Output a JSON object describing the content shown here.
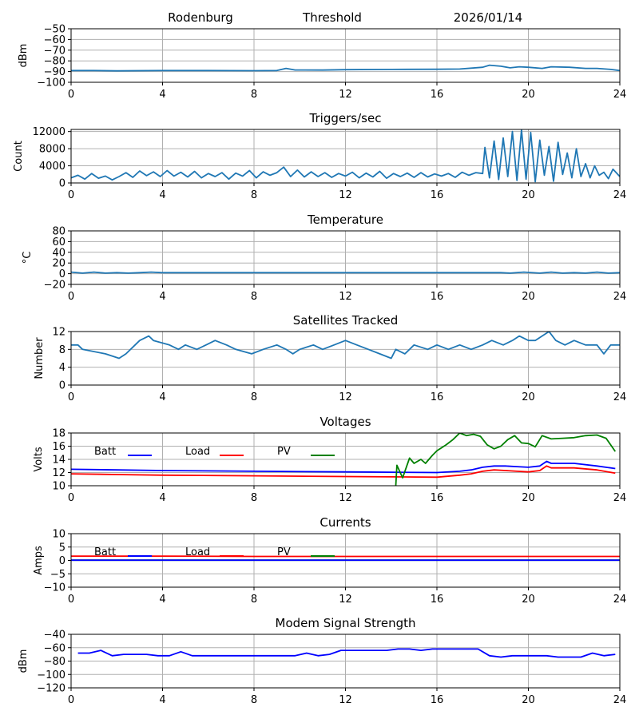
{
  "header": {
    "site": "Rodenburg",
    "mode": "Threshold",
    "date": "2026/01/14"
  },
  "colors": {
    "series": "#1f77b4",
    "batt": "#0000ff",
    "load": "#ff0000",
    "pv": "#008000",
    "grid": "#b0b0b0"
  },
  "chart_data": [
    {
      "id": "signal",
      "type": "line",
      "title": "",
      "ylabel": "dBm",
      "xlim": [
        0,
        24
      ],
      "ylim": [
        -100,
        -50
      ],
      "xticks": [
        0,
        4,
        8,
        12,
        16,
        20,
        24
      ],
      "yticks": [
        -100,
        -90,
        -80,
        -70,
        -60,
        -50
      ],
      "series": [
        {
          "name": "signal",
          "color": "#1f77b4",
          "x": [
            0,
            1,
            2,
            4,
            6,
            8,
            9,
            9.4,
            9.8,
            11,
            12,
            14,
            16,
            17,
            18,
            18.3,
            18.8,
            19.2,
            19.6,
            20,
            20.6,
            21,
            21.8,
            22.5,
            23,
            23.6,
            24
          ],
          "y": [
            -89,
            -89,
            -89.3,
            -89,
            -89,
            -89.2,
            -89,
            -87,
            -88.5,
            -88.6,
            -88.2,
            -88,
            -87.8,
            -87.6,
            -86,
            -84,
            -85,
            -86.5,
            -85.5,
            -86,
            -87,
            -85.5,
            -86,
            -87,
            -87,
            -88,
            -89
          ]
        }
      ]
    },
    {
      "id": "triggers",
      "type": "line",
      "title": "Triggers/sec",
      "ylabel": "Count",
      "xlim": [
        0,
        24
      ],
      "ylim": [
        0,
        12500
      ],
      "xticks": [
        0,
        4,
        8,
        12,
        16,
        20,
        24
      ],
      "yticks": [
        0,
        4000,
        8000,
        12000
      ],
      "series": [
        {
          "name": "triggers",
          "color": "#1f77b4",
          "x": [
            0,
            0.3,
            0.6,
            0.9,
            1.2,
            1.5,
            1.8,
            2.1,
            2.4,
            2.7,
            3.0,
            3.3,
            3.6,
            3.9,
            4.2,
            4.5,
            4.8,
            5.1,
            5.4,
            5.7,
            6.0,
            6.3,
            6.6,
            6.9,
            7.2,
            7.5,
            7.8,
            8.1,
            8.4,
            8.7,
            9.0,
            9.3,
            9.6,
            9.9,
            10.2,
            10.5,
            10.8,
            11.1,
            11.4,
            11.7,
            12.0,
            12.3,
            12.6,
            12.9,
            13.2,
            13.5,
            13.8,
            14.1,
            14.4,
            14.7,
            15.0,
            15.3,
            15.6,
            15.9,
            16.2,
            16.5,
            16.8,
            17.1,
            17.4,
            17.7,
            18.0,
            18.1,
            18.3,
            18.5,
            18.7,
            18.9,
            19.1,
            19.3,
            19.5,
            19.7,
            19.9,
            20.1,
            20.3,
            20.5,
            20.7,
            20.9,
            21.1,
            21.3,
            21.5,
            21.7,
            21.9,
            22.1,
            22.3,
            22.5,
            22.7,
            22.9,
            23.1,
            23.3,
            23.5,
            23.7,
            24
          ],
          "y": [
            1200,
            1800,
            900,
            2200,
            1100,
            1600,
            700,
            1500,
            2400,
            1300,
            2800,
            1700,
            2600,
            1500,
            2900,
            1600,
            2500,
            1400,
            2700,
            1200,
            2200,
            1500,
            2400,
            900,
            2300,
            1600,
            2900,
            1200,
            2600,
            1800,
            2400,
            3700,
            1500,
            3000,
            1400,
            2600,
            1500,
            2400,
            1300,
            2200,
            1600,
            2500,
            1200,
            2300,
            1400,
            2700,
            1100,
            2200,
            1500,
            2300,
            1300,
            2400,
            1400,
            2100,
            1600,
            2200,
            1300,
            2500,
            1800,
            2400,
            2200,
            8300,
            1200,
            9800,
            800,
            10500,
            1500,
            12000,
            600,
            12400,
            900,
            11800,
            300,
            10000,
            1800,
            8500,
            400,
            9500,
            2000,
            7000,
            1200,
            8000,
            1500,
            4500,
            1200,
            4000,
            1800,
            2500,
            1000,
            3200,
            1500
          ]
        }
      ]
    },
    {
      "id": "temperature",
      "type": "line",
      "title": "Temperature",
      "ylabel": "°C",
      "xlim": [
        0,
        24
      ],
      "ylim": [
        -20,
        80
      ],
      "xticks": [
        0,
        4,
        8,
        12,
        16,
        20,
        24
      ],
      "yticks": [
        -20,
        0,
        20,
        40,
        60,
        80
      ],
      "series": [
        {
          "name": "temperature",
          "color": "#1f77b4",
          "x": [
            0,
            0.5,
            1,
            1.5,
            2,
            2.5,
            3,
            3.5,
            4,
            8,
            12,
            16,
            18.8,
            19.2,
            19.8,
            20.5,
            21,
            21.5,
            22,
            22.5,
            23,
            23.5,
            24
          ],
          "y": [
            3,
            1,
            3,
            1,
            2,
            1,
            2,
            3,
            2,
            2,
            2,
            2,
            2,
            1,
            3,
            1,
            3,
            1,
            2,
            1,
            3,
            1,
            2
          ]
        }
      ]
    },
    {
      "id": "satellites",
      "type": "line",
      "title": "Satellites Tracked",
      "ylabel": "Number",
      "xlim": [
        0,
        24
      ],
      "ylim": [
        0,
        12
      ],
      "xticks": [
        0,
        4,
        8,
        12,
        16,
        20,
        24
      ],
      "yticks": [
        0,
        4,
        8,
        12
      ],
      "series": [
        {
          "name": "satellites",
          "color": "#1f77b4",
          "x": [
            0,
            0.3,
            0.5,
            1.5,
            2.1,
            2.4,
            2.8,
            3.0,
            3.4,
            3.6,
            4.3,
            4.7,
            5.0,
            5.5,
            5.9,
            6.3,
            6.8,
            7.2,
            7.9,
            8.4,
            9.0,
            9.4,
            9.7,
            10.0,
            10.6,
            11.0,
            11.5,
            12.0,
            12.5,
            13.0,
            13.5,
            14.0,
            14.2,
            14.6,
            15.0,
            15.6,
            16.0,
            16.5,
            17.0,
            17.5,
            18.0,
            18.4,
            18.9,
            19.3,
            19.6,
            20.0,
            20.3,
            20.6,
            20.9,
            21.2,
            21.6,
            22.0,
            22.5,
            23.0,
            23.3,
            23.6,
            24
          ],
          "y": [
            9,
            9,
            8,
            7,
            6,
            7,
            9,
            10,
            11,
            10,
            9,
            8,
            9,
            8,
            9,
            10,
            9,
            8,
            7,
            8,
            9,
            8,
            7,
            8,
            9,
            8,
            9,
            10,
            9,
            8,
            7,
            6,
            8,
            7,
            9,
            8,
            9,
            8,
            9,
            8,
            9,
            10,
            9,
            10,
            11,
            10,
            10,
            11,
            12,
            10,
            9,
            10,
            9,
            9,
            7,
            9,
            9
          ]
        }
      ]
    },
    {
      "id": "voltages",
      "type": "line",
      "title": "Voltages",
      "ylabel": "Volts",
      "xlim": [
        0,
        24
      ],
      "ylim": [
        10,
        18
      ],
      "xticks": [
        0,
        4,
        8,
        12,
        16,
        20,
        24
      ],
      "yticks": [
        10,
        12,
        14,
        16,
        18
      ],
      "legend": [
        "Batt",
        "Load",
        "PV"
      ],
      "series": [
        {
          "name": "Batt",
          "color": "#0000ff",
          "x": [
            0,
            2,
            4,
            8,
            12,
            16,
            17,
            17.5,
            18,
            18.5,
            19,
            19.5,
            20,
            20.5,
            20.8,
            21,
            22,
            23,
            23.8
          ],
          "y": [
            12.5,
            12.4,
            12.3,
            12.2,
            12.1,
            12.0,
            12.2,
            12.4,
            12.8,
            13.0,
            13.0,
            12.9,
            12.8,
            13.0,
            13.7,
            13.4,
            13.4,
            13.0,
            12.6
          ]
        },
        {
          "name": "Load",
          "color": "#ff0000",
          "x": [
            0,
            2,
            4,
            8,
            12,
            16,
            17,
            17.5,
            18,
            18.5,
            19,
            19.5,
            20,
            20.5,
            20.8,
            21,
            22,
            23,
            23.8
          ],
          "y": [
            11.8,
            11.7,
            11.6,
            11.5,
            11.4,
            11.3,
            11.6,
            11.8,
            12.2,
            12.4,
            12.3,
            12.2,
            12.1,
            12.3,
            13.0,
            12.7,
            12.7,
            12.4,
            11.9
          ]
        },
        {
          "name": "PV",
          "color": "#008000",
          "x": [
            14.2,
            14.25,
            14.5,
            14.8,
            15.0,
            15.3,
            15.5,
            15.8,
            16.0,
            16.4,
            16.7,
            17.0,
            17.3,
            17.6,
            17.9,
            18.2,
            18.5,
            18.8,
            19.1,
            19.4,
            19.7,
            20.0,
            20.3,
            20.6,
            21.0,
            21.5,
            22.0,
            22.5,
            23.0,
            23.4,
            23.8
          ],
          "y": [
            10,
            13.1,
            11.2,
            14.2,
            13.4,
            14.0,
            13.4,
            14.6,
            15.3,
            16.2,
            17.0,
            18.0,
            17.6,
            17.8,
            17.5,
            16.2,
            15.6,
            16.0,
            17.0,
            17.6,
            16.5,
            16.4,
            15.9,
            17.6,
            17.1,
            17.2,
            17.3,
            17.6,
            17.7,
            17.2,
            15.2
          ]
        }
      ]
    },
    {
      "id": "currents",
      "type": "line",
      "title": "Currents",
      "ylabel": "Amps",
      "xlim": [
        0,
        24
      ],
      "ylim": [
        -10,
        10
      ],
      "xticks": [
        0,
        4,
        8,
        12,
        16,
        20,
        24
      ],
      "yticks": [
        -10,
        -5,
        0,
        5,
        10
      ],
      "legend": [
        "Batt",
        "Load",
        "PV"
      ],
      "series": [
        {
          "name": "Load",
          "color": "#ff0000",
          "x": [
            0,
            4,
            8,
            12,
            16,
            20,
            24
          ],
          "y": [
            1.6,
            1.6,
            1.5,
            1.5,
            1.5,
            1.5,
            1.5
          ]
        },
        {
          "name": "PV",
          "color": "#008000",
          "x": [
            0,
            24
          ],
          "y": [
            0.1,
            0.1
          ]
        },
        {
          "name": "Batt",
          "color": "#0000ff",
          "x": [
            0,
            24
          ],
          "y": [
            0.1,
            0.1
          ]
        }
      ]
    },
    {
      "id": "modem",
      "type": "line",
      "title": "Modem Signal Strength",
      "ylabel": "dBm",
      "xlim": [
        0,
        24
      ],
      "ylim": [
        -120,
        -40
      ],
      "xticks": [
        0,
        4,
        8,
        12,
        16,
        20,
        24
      ],
      "yticks": [
        -120,
        -100,
        -80,
        -60,
        -40
      ],
      "series": [
        {
          "name": "modem",
          "color": "#0000ff",
          "x": [
            0.3,
            0.8,
            1.3,
            1.8,
            2.3,
            2.8,
            3.3,
            3.8,
            4.3,
            4.8,
            5.3,
            5.8,
            6.3,
            6.8,
            7.3,
            7.8,
            8.3,
            8.8,
            9.3,
            9.8,
            10.3,
            10.8,
            11.3,
            11.8,
            12.3,
            12.8,
            13.3,
            13.8,
            14.3,
            14.8,
            15.3,
            15.8,
            16.3,
            16.8,
            17.3,
            17.8,
            18.3,
            18.8,
            19.3,
            19.8,
            20.3,
            20.8,
            21.3,
            21.8,
            22.3,
            22.8,
            23.3,
            23.8
          ],
          "y": [
            -68,
            -68,
            -64,
            -72,
            -70,
            -70,
            -70,
            -72,
            -72,
            -66,
            -72,
            -72,
            -72,
            -72,
            -72,
            -72,
            -72,
            -72,
            -72,
            -72,
            -68,
            -72,
            -70,
            -64,
            -64,
            -64,
            -64,
            -64,
            -62,
            -62,
            -64,
            -62,
            -62,
            -62,
            -62,
            -62,
            -72,
            -74,
            -72,
            -72,
            -72,
            -72,
            -74,
            -74,
            -74,
            -68,
            -72,
            -70
          ]
        }
      ]
    }
  ]
}
